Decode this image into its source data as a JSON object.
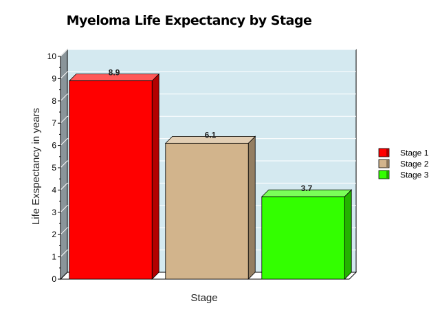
{
  "chart_data": {
    "type": "bar",
    "title": "Myeloma Life Expectancy by Stage",
    "xlabel": "Stage",
    "ylabel": "Life Exspectancy in years",
    "ylim": [
      0,
      10
    ],
    "yticks": [
      0,
      1,
      2,
      3,
      4,
      5,
      6,
      7,
      8,
      9,
      10
    ],
    "grid": true,
    "legend_position": "right",
    "series": [
      {
        "name": "Stage 1",
        "value": 8.9,
        "label": "8.9",
        "color": "#ff0000"
      },
      {
        "name": "Stage 2",
        "value": 6.1,
        "label": "6.1",
        "color": "#d2b48c"
      },
      {
        "name": "Stage 3",
        "value": 3.7,
        "label": "3.7",
        "color": "#33ff00"
      }
    ],
    "plot_background": "#d4e9f0"
  }
}
